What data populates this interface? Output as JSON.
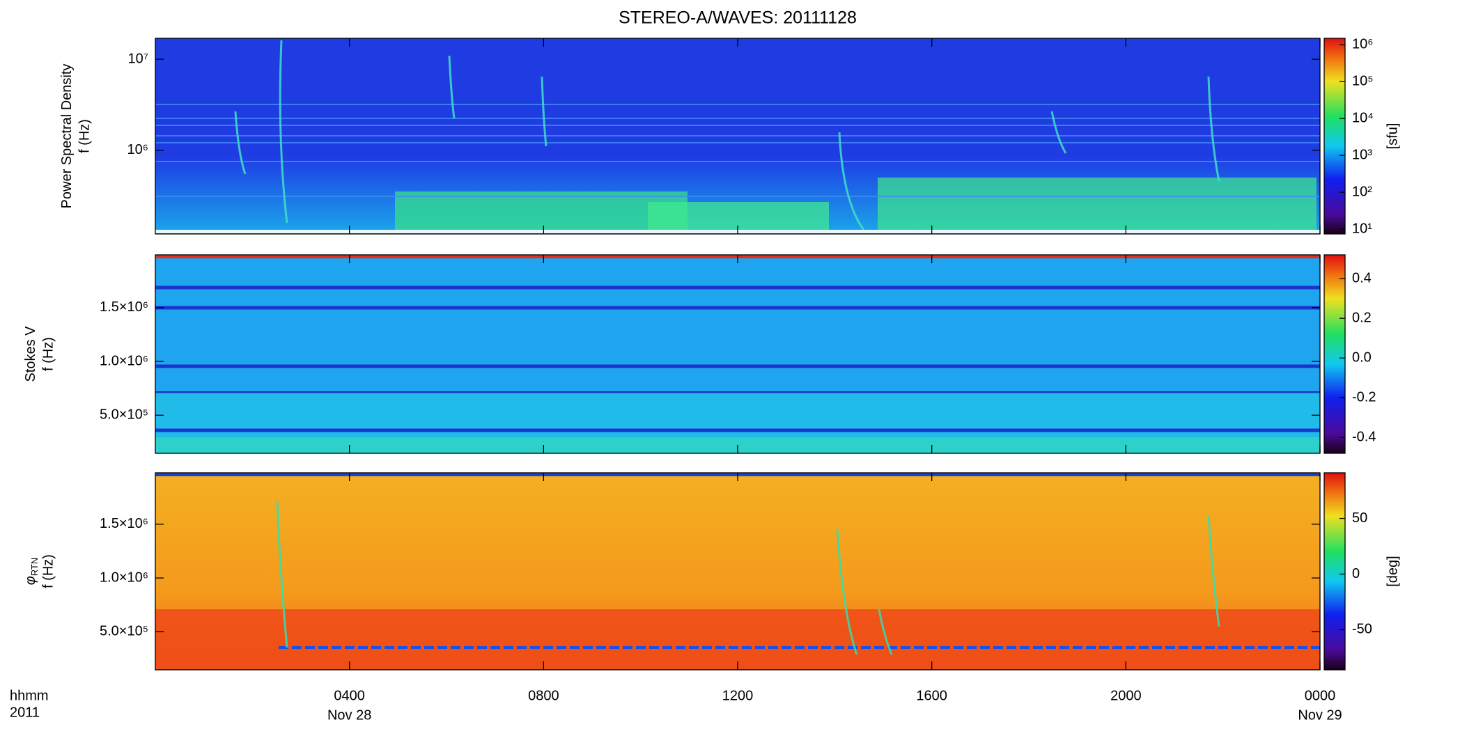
{
  "chart_data": [
    {
      "type": "heatmap",
      "title": "STEREO-A/WAVES: 20111128",
      "quantity": "Power Spectral Density",
      "ylabel": "f (Hz)",
      "log": true,
      "ylim": [
        120000,
        17000000
      ],
      "yticks": [
        {
          "value": 1000000,
          "label": "10⁶"
        },
        {
          "value": 10000000,
          "label": "10⁷"
        }
      ],
      "colorbar": {
        "log": true,
        "zlim": [
          7.4,
          1500000
        ],
        "label": "[sfu]",
        "zticks": [
          {
            "value": 10,
            "label": "10¹"
          },
          {
            "value": 100,
            "label": "10²"
          },
          {
            "value": 1000,
            "label": "10³"
          },
          {
            "value": 10000,
            "label": "10⁴"
          },
          {
            "value": 100000,
            "label": "10⁵"
          },
          {
            "value": 1000000,
            "label": "10⁶"
          }
        ]
      }
    },
    {
      "type": "heatmap",
      "quantity": "Stokes V",
      "ylabel": "f (Hz)",
      "log": false,
      "ylim": [
        146000,
        1990000
      ],
      "yticks": [
        {
          "value": 500000,
          "label": "5.0×10⁵"
        },
        {
          "value": 1000000,
          "label": "1.0×10⁶"
        },
        {
          "value": 1500000,
          "label": "1.5×10⁶"
        }
      ],
      "colorbar": {
        "log": false,
        "zlim": [
          -0.48,
          0.52
        ],
        "label": "",
        "zticks": [
          -0.4,
          -0.2,
          {
            "value": 0,
            "label": "0.0"
          },
          0.2,
          0.4
        ]
      }
    },
    {
      "type": "heatmap",
      "quantity": "φ",
      "quantity_subscript": "RTN",
      "ylabel": "f (Hz)",
      "log": false,
      "ylim": [
        146000,
        1978000
      ],
      "yticks": [
        {
          "value": 500000,
          "label": "5.0×10⁵"
        },
        {
          "value": 1000000,
          "label": "1.0×10⁶"
        },
        {
          "value": 1500000,
          "label": "1.5×10⁶"
        }
      ],
      "colorbar": {
        "log": false,
        "zlim": [
          -86,
          91
        ],
        "label": "[deg]",
        "zticks": [
          -50,
          0,
          50
        ]
      },
      "xlabel": "hhmm",
      "year": "2011",
      "xlim": [
        0,
        24
      ],
      "xticks": [
        {
          "value": 4,
          "label": "0400"
        },
        {
          "value": 8,
          "label": "0800"
        },
        {
          "value": 12,
          "label": "1200"
        },
        {
          "value": 16,
          "label": "1600"
        },
        {
          "value": 20,
          "label": "2000"
        },
        {
          "value": 24,
          "label": "0000"
        }
      ],
      "date_labels": [
        {
          "value": 4,
          "label": "Nov 28"
        },
        {
          "value": 24,
          "label": "Nov 29"
        }
      ]
    }
  ]
}
